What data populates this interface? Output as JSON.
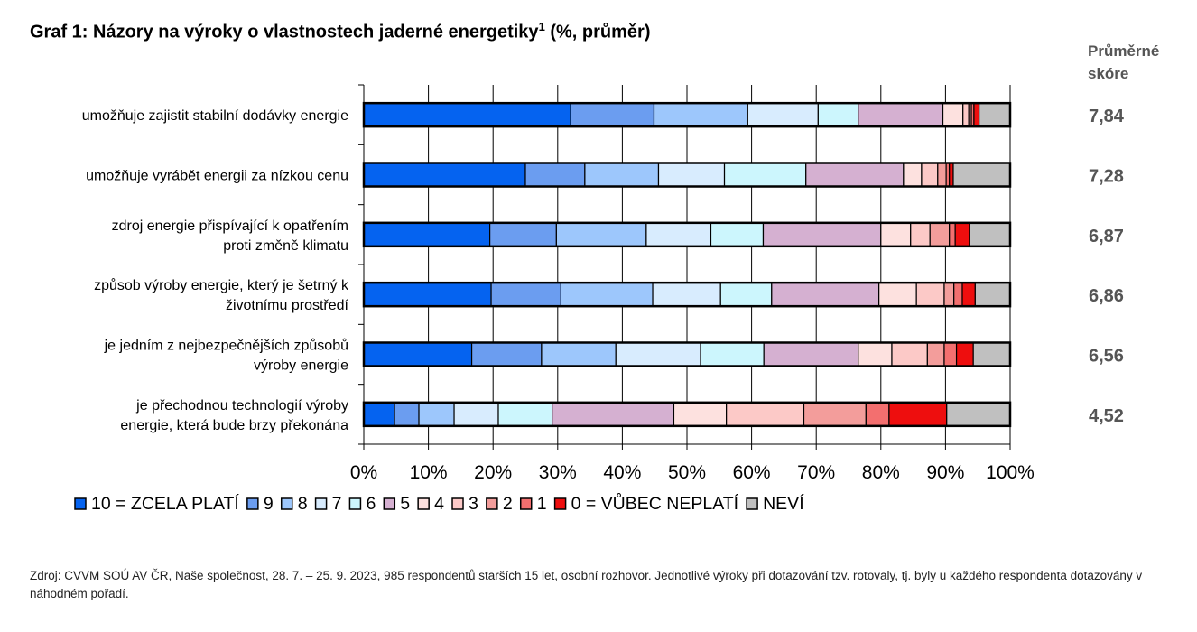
{
  "header": {
    "title_main": "Graf 1: Názory na výroky o vlastnostech jaderné energetiky",
    "title_sup": "1",
    "title_suffix": " (%, průměr)",
    "score_header_line1": "Průměrné",
    "score_header_line2": "skóre"
  },
  "chart_data": {
    "type": "bar",
    "orientation": "horizontal",
    "stacked": "100%",
    "categories": [
      [
        "umožňuje zajistit stabilní dodávky energie"
      ],
      [
        "umožňuje vyrábět energii za nízkou cenu"
      ],
      [
        "zdroj energie přispívající k opatřením",
        "proti změně klimatu"
      ],
      [
        "způsob výroby energie, který je šetrný k",
        "životnímu prostředí"
      ],
      [
        "je jedním z nejbezpečnějších způsobů",
        "výroby energie"
      ],
      [
        "je přechodnou technologií výroby",
        "energie, která bude brzy překonána"
      ]
    ],
    "series": [
      {
        "name": "10 = ZCELA PLATÍ",
        "color": "#0563f0",
        "values": [
          32,
          25,
          19.5,
          19.7,
          16.7,
          4.8
        ]
      },
      {
        "name": "9",
        "color": "#6b9df0",
        "values": [
          12.9,
          9.2,
          10.3,
          10.8,
          10.8,
          3.8
        ]
      },
      {
        "name": "8",
        "color": "#9dc7fc",
        "values": [
          14.5,
          11.4,
          13.9,
          14.2,
          11.5,
          5.5
        ]
      },
      {
        "name": "7",
        "color": "#d8ecfe",
        "values": [
          10.9,
          10.2,
          10,
          10.5,
          13.1,
          6.9
        ]
      },
      {
        "name": "6",
        "color": "#ccf6fd",
        "values": [
          6.2,
          12.6,
          8.1,
          7.9,
          9.8,
          8.4
        ]
      },
      {
        "name": "5",
        "color": "#d5b0d1",
        "values": [
          13.1,
          15.1,
          18.2,
          16.6,
          14.6,
          19
        ]
      },
      {
        "name": "4",
        "color": "#fde1df",
        "values": [
          3.1,
          2.8,
          4.6,
          5.8,
          5.2,
          8.2
        ]
      },
      {
        "name": "3",
        "color": "#fcc9c7",
        "values": [
          0.9,
          2.5,
          3,
          4.3,
          5.5,
          12.1
        ]
      },
      {
        "name": "2",
        "color": "#f39d9b",
        "values": [
          0.4,
          1.3,
          3,
          1.5,
          2.6,
          9.7
        ]
      },
      {
        "name": "1",
        "color": "#f36f6f",
        "values": [
          0.4,
          0.5,
          0.9,
          1.3,
          1.9,
          3.6
        ]
      },
      {
        "name": "0 = VŮBEC NEPLATÍ",
        "color": "#ee0e0e",
        "values": [
          0.8,
          0.6,
          2.2,
          2,
          2.6,
          9
        ]
      },
      {
        "name": "NEVÍ",
        "color": "#c0c0c0",
        "values": [
          4.8,
          8.8,
          6.3,
          5.4,
          5.7,
          9.9
        ]
      }
    ],
    "average_scores": [
      "7,84",
      "7,28",
      "6,87",
      "6,86",
      "6,56",
      "4,52"
    ],
    "x_ticks": [
      "0%",
      "10%",
      "20%",
      "30%",
      "40%",
      "50%",
      "60%",
      "70%",
      "80%",
      "90%",
      "100%"
    ],
    "xlim": [
      0,
      100
    ],
    "grid": true,
    "legend_position": "bottom"
  },
  "footer": {
    "source": "Zdroj: CVVM SOÚ AV ČR, Naše společnost, 28. 7. – 25. 9. 2023, 985 respondentů starších 15 let, osobní rozhovor. Jednotlivé výroky při dotazování tzv. rotovaly, tj. byly u každého respondenta dotazovány v náhodném pořadí."
  }
}
